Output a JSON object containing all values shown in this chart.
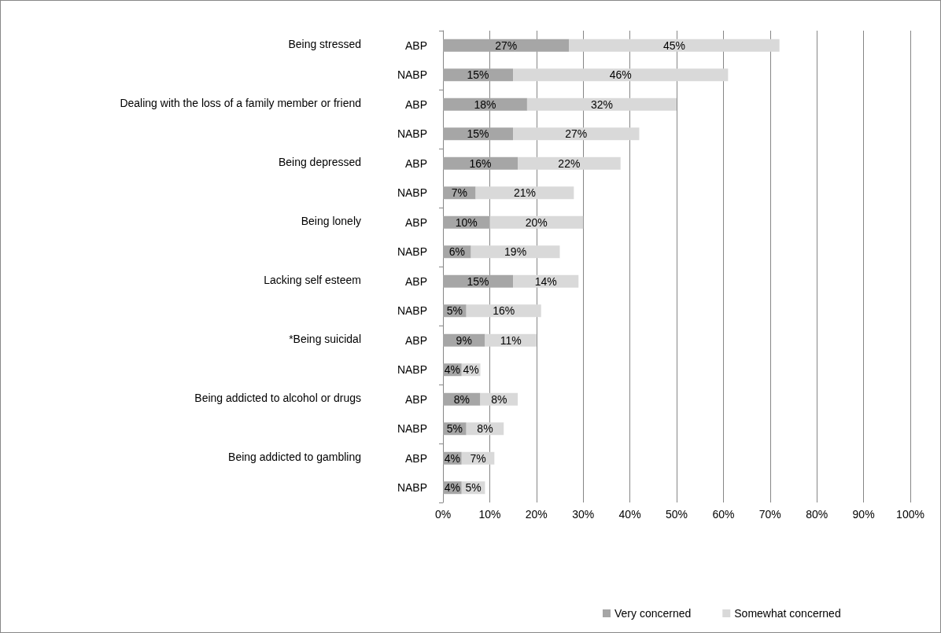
{
  "chart_data": {
    "type": "bar",
    "orientation": "horizontal",
    "stacked": true,
    "categories": [
      "ABP",
      "NABP",
      "ABP",
      "NABP",
      "ABP",
      "NABP",
      "ABP",
      "NABP",
      "ABP",
      "NABP",
      "ABP",
      "NABP",
      "ABP",
      "NABP",
      "ABP",
      "NABP"
    ],
    "annotations": [
      "Being stressed",
      "Dealing with the loss of a family member or friend",
      "Being depressed",
      "Being lonely",
      "Lacking self esteem",
      "*Being suicidal",
      "Being addicted to alcohol or drugs",
      "Being addicted to gambling"
    ],
    "series": [
      {
        "name": "Very concerned",
        "color": "#a6a6a6",
        "values": [
          27,
          15,
          18,
          15,
          16,
          7,
          10,
          6,
          15,
          5,
          9,
          4,
          8,
          5,
          4,
          4
        ],
        "value_labels": [
          "27%",
          "15%",
          "18%",
          "15%",
          "16%",
          "7%",
          "10%",
          "6%",
          "15%",
          "5%",
          "9%",
          "4%",
          "8%",
          "5%",
          "4%",
          "4%"
        ]
      },
      {
        "name": "Somewhat concerned",
        "color": "#d9d9d9",
        "values": [
          45,
          46,
          32,
          27,
          22,
          21,
          20,
          19,
          14,
          16,
          11,
          4,
          8,
          8,
          7,
          5
        ],
        "value_labels": [
          "45%",
          "46%",
          "32%",
          "27%",
          "22%",
          "21%",
          "20%",
          "19%",
          "14%",
          "16%",
          "11%",
          "4%",
          "8%",
          "8%",
          "7%",
          "5%"
        ]
      }
    ],
    "xlim": [
      0,
      100
    ],
    "xticks": [
      {
        "value": 0,
        "label": "0%"
      },
      {
        "value": 10,
        "label": "10%"
      },
      {
        "value": 20,
        "label": "20%"
      },
      {
        "value": 30,
        "label": "30%"
      },
      {
        "value": 40,
        "label": "40%"
      },
      {
        "value": 50,
        "label": "50%"
      },
      {
        "value": 60,
        "label": "60%"
      },
      {
        "value": 70,
        "label": "70%"
      },
      {
        "value": 80,
        "label": "80%"
      },
      {
        "value": 90,
        "label": "90%"
      },
      {
        "value": 100,
        "label": "100%"
      }
    ],
    "grid": "x",
    "legend": "bottom"
  }
}
